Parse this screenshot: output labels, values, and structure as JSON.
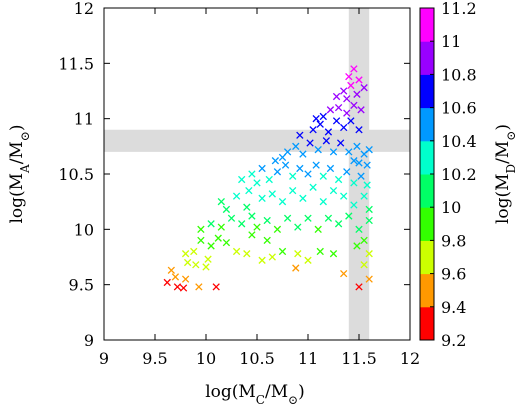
{
  "chart_data": {
    "type": "scatter",
    "xlabel": {
      "main": "log(M",
      "sub": "C",
      "mid": "/M",
      "sun": "⊙",
      "end": ")"
    },
    "ylabel": {
      "main": "log(M",
      "sub": "A",
      "mid": "/M",
      "sun": "⊙",
      "end": ")"
    },
    "colorbar_label": {
      "main": "log(M",
      "sub": "D",
      "mid": "/M",
      "sun": "⊙",
      "end": ")"
    },
    "xlim": [
      9,
      12
    ],
    "ylim": [
      9,
      12
    ],
    "x_ticks": [
      "9",
      "9.5",
      "10",
      "10.5",
      "11",
      "11.5",
      "12"
    ],
    "y_ticks": [
      "9",
      "9.5",
      "10",
      "10.5",
      "11",
      "11.5",
      "12"
    ],
    "colorbar": {
      "range": [
        9.2,
        11.2
      ],
      "ticks": [
        "9.2",
        "9.4",
        "9.6",
        "9.8",
        "10",
        "10.2",
        "10.4",
        "10.6",
        "10.8",
        "11",
        "11.2"
      ],
      "colors": [
        "#ff0000",
        "#ff9900",
        "#ccff00",
        "#33ff00",
        "#00ff66",
        "#00ffcc",
        "#0099ff",
        "#0000ff",
        "#9900ff",
        "#ff00ff"
      ]
    },
    "shaded_bands": {
      "vertical_x_range": [
        11.4,
        11.6
      ],
      "horizontal_y_range": [
        10.7,
        10.9
      ],
      "color": "#dcdcdc"
    },
    "marker": "x",
    "points": [
      [
        9.62,
        9.52,
        9.35
      ],
      [
        9.72,
        9.48,
        9.3
      ],
      [
        9.78,
        9.47,
        9.28
      ],
      [
        10.1,
        9.48,
        9.32
      ],
      [
        11.5,
        9.48,
        9.38
      ],
      [
        9.66,
        9.63,
        9.48
      ],
      [
        9.7,
        9.57,
        9.52
      ],
      [
        9.8,
        9.55,
        9.5
      ],
      [
        9.93,
        9.48,
        9.55
      ],
      [
        11.6,
        9.55,
        9.48
      ],
      [
        9.82,
        9.7,
        9.6
      ],
      [
        9.9,
        9.68,
        9.62
      ],
      [
        10.02,
        9.73,
        9.7
      ],
      [
        10.0,
        9.66,
        9.64
      ],
      [
        11.35,
        9.6,
        9.55
      ],
      [
        11.55,
        9.68,
        9.6
      ],
      [
        11.6,
        9.78,
        9.68
      ],
      [
        10.88,
        9.65,
        9.58
      ],
      [
        9.8,
        9.78,
        9.75
      ],
      [
        9.88,
        9.8,
        9.78
      ],
      [
        9.95,
        9.9,
        9.82
      ],
      [
        10.05,
        9.85,
        9.8
      ],
      [
        10.12,
        9.92,
        9.85
      ],
      [
        10.2,
        9.88,
        9.85
      ],
      [
        10.3,
        9.8,
        9.78
      ],
      [
        10.4,
        9.78,
        9.75
      ],
      [
        10.55,
        9.72,
        9.72
      ],
      [
        10.65,
        9.75,
        9.76
      ],
      [
        10.75,
        9.8,
        9.8
      ],
      [
        10.9,
        9.78,
        9.78
      ],
      [
        11.0,
        9.72,
        9.74
      ],
      [
        11.12,
        9.8,
        9.8
      ],
      [
        11.25,
        9.78,
        9.8
      ],
      [
        11.48,
        9.85,
        9.82
      ],
      [
        11.55,
        9.9,
        9.86
      ],
      [
        10.45,
        9.95,
        9.9
      ],
      [
        10.6,
        9.9,
        9.88
      ],
      [
        9.95,
        10.0,
        9.95
      ],
      [
        10.05,
        10.05,
        10.0
      ],
      [
        10.15,
        10.02,
        9.98
      ],
      [
        10.25,
        10.1,
        10.02
      ],
      [
        10.35,
        10.05,
        10.0
      ],
      [
        10.45,
        10.12,
        10.05
      ],
      [
        10.5,
        10.02,
        9.98
      ],
      [
        10.6,
        10.08,
        10.02
      ],
      [
        10.7,
        10.0,
        9.96
      ],
      [
        10.8,
        10.1,
        10.04
      ],
      [
        10.9,
        10.02,
        10.0
      ],
      [
        11.0,
        10.1,
        10.05
      ],
      [
        11.1,
        10.0,
        9.98
      ],
      [
        11.2,
        10.1,
        10.05
      ],
      [
        11.3,
        10.05,
        10.02
      ],
      [
        11.4,
        10.12,
        10.06
      ],
      [
        11.5,
        10.0,
        10.0
      ],
      [
        11.6,
        10.08,
        10.04
      ],
      [
        10.2,
        10.18,
        10.1
      ],
      [
        10.4,
        10.2,
        10.12
      ],
      [
        10.15,
        10.25,
        10.18
      ],
      [
        10.3,
        10.3,
        10.2
      ],
      [
        10.42,
        10.35,
        10.25
      ],
      [
        10.55,
        10.28,
        10.2
      ],
      [
        10.65,
        10.32,
        10.24
      ],
      [
        10.75,
        10.25,
        10.2
      ],
      [
        10.85,
        10.35,
        10.26
      ],
      [
        10.95,
        10.28,
        10.22
      ],
      [
        11.05,
        10.38,
        10.28
      ],
      [
        11.15,
        10.25,
        10.2
      ],
      [
        11.25,
        10.35,
        10.27
      ],
      [
        11.35,
        10.3,
        10.25
      ],
      [
        11.45,
        10.22,
        10.2
      ],
      [
        11.55,
        10.3,
        10.24
      ],
      [
        11.6,
        10.18,
        10.15
      ],
      [
        10.35,
        10.45,
        10.35
      ],
      [
        10.45,
        10.5,
        10.38
      ],
      [
        10.55,
        10.55,
        10.42
      ],
      [
        10.62,
        10.45,
        10.36
      ],
      [
        10.7,
        10.52,
        10.4
      ],
      [
        10.78,
        10.58,
        10.44
      ],
      [
        10.85,
        10.48,
        10.38
      ],
      [
        10.92,
        10.55,
        10.42
      ],
      [
        11.0,
        10.5,
        10.4
      ],
      [
        11.08,
        10.58,
        10.45
      ],
      [
        11.15,
        10.48,
        10.38
      ],
      [
        11.22,
        10.55,
        10.42
      ],
      [
        11.3,
        10.45,
        10.38
      ],
      [
        11.38,
        10.52,
        10.4
      ],
      [
        11.45,
        10.42,
        10.36
      ],
      [
        11.52,
        10.48,
        10.4
      ],
      [
        11.58,
        10.4,
        10.34
      ],
      [
        10.5,
        10.42,
        10.32
      ],
      [
        10.68,
        10.62,
        10.46
      ],
      [
        10.8,
        10.7,
        10.55
      ],
      [
        10.88,
        10.75,
        10.58
      ],
      [
        10.95,
        10.68,
        10.52
      ],
      [
        11.02,
        10.78,
        10.6
      ],
      [
        11.1,
        10.72,
        10.56
      ],
      [
        11.18,
        10.8,
        10.62
      ],
      [
        11.25,
        10.7,
        10.55
      ],
      [
        11.32,
        10.78,
        10.6
      ],
      [
        11.4,
        10.7,
        10.52
      ],
      [
        11.48,
        10.75,
        10.58
      ],
      [
        11.55,
        10.68,
        10.5
      ],
      [
        11.6,
        10.72,
        10.54
      ],
      [
        10.75,
        10.65,
        10.5
      ],
      [
        10.92,
        10.85,
        10.65
      ],
      [
        11.05,
        10.9,
        10.68
      ],
      [
        11.12,
        10.95,
        10.72
      ],
      [
        11.2,
        10.88,
        10.66
      ],
      [
        11.28,
        10.98,
        10.75
      ],
      [
        11.35,
        10.92,
        10.7
      ],
      [
        11.42,
        10.98,
        10.74
      ],
      [
        11.5,
        10.9,
        10.68
      ],
      [
        11.15,
        11.02,
        10.78
      ],
      [
        11.22,
        11.08,
        10.82
      ],
      [
        11.3,
        11.1,
        10.85
      ],
      [
        11.38,
        11.05,
        10.8
      ],
      [
        11.45,
        11.12,
        10.86
      ],
      [
        11.52,
        11.08,
        10.82
      ],
      [
        11.08,
        11.0,
        10.76
      ],
      [
        11.28,
        11.2,
        10.92
      ],
      [
        11.35,
        11.25,
        10.98
      ],
      [
        11.42,
        11.3,
        11.02
      ],
      [
        11.48,
        11.22,
        10.95
      ],
      [
        11.4,
        11.38,
        11.06
      ],
      [
        11.45,
        11.45,
        11.1
      ],
      [
        11.5,
        11.35,
        11.04
      ],
      [
        11.38,
        11.18,
        10.9
      ],
      [
        11.55,
        11.28,
        10.95
      ],
      [
        11.5,
        10.6,
        10.45
      ],
      [
        11.58,
        10.58,
        10.44
      ],
      [
        11.45,
        10.62,
        10.46
      ]
    ]
  }
}
